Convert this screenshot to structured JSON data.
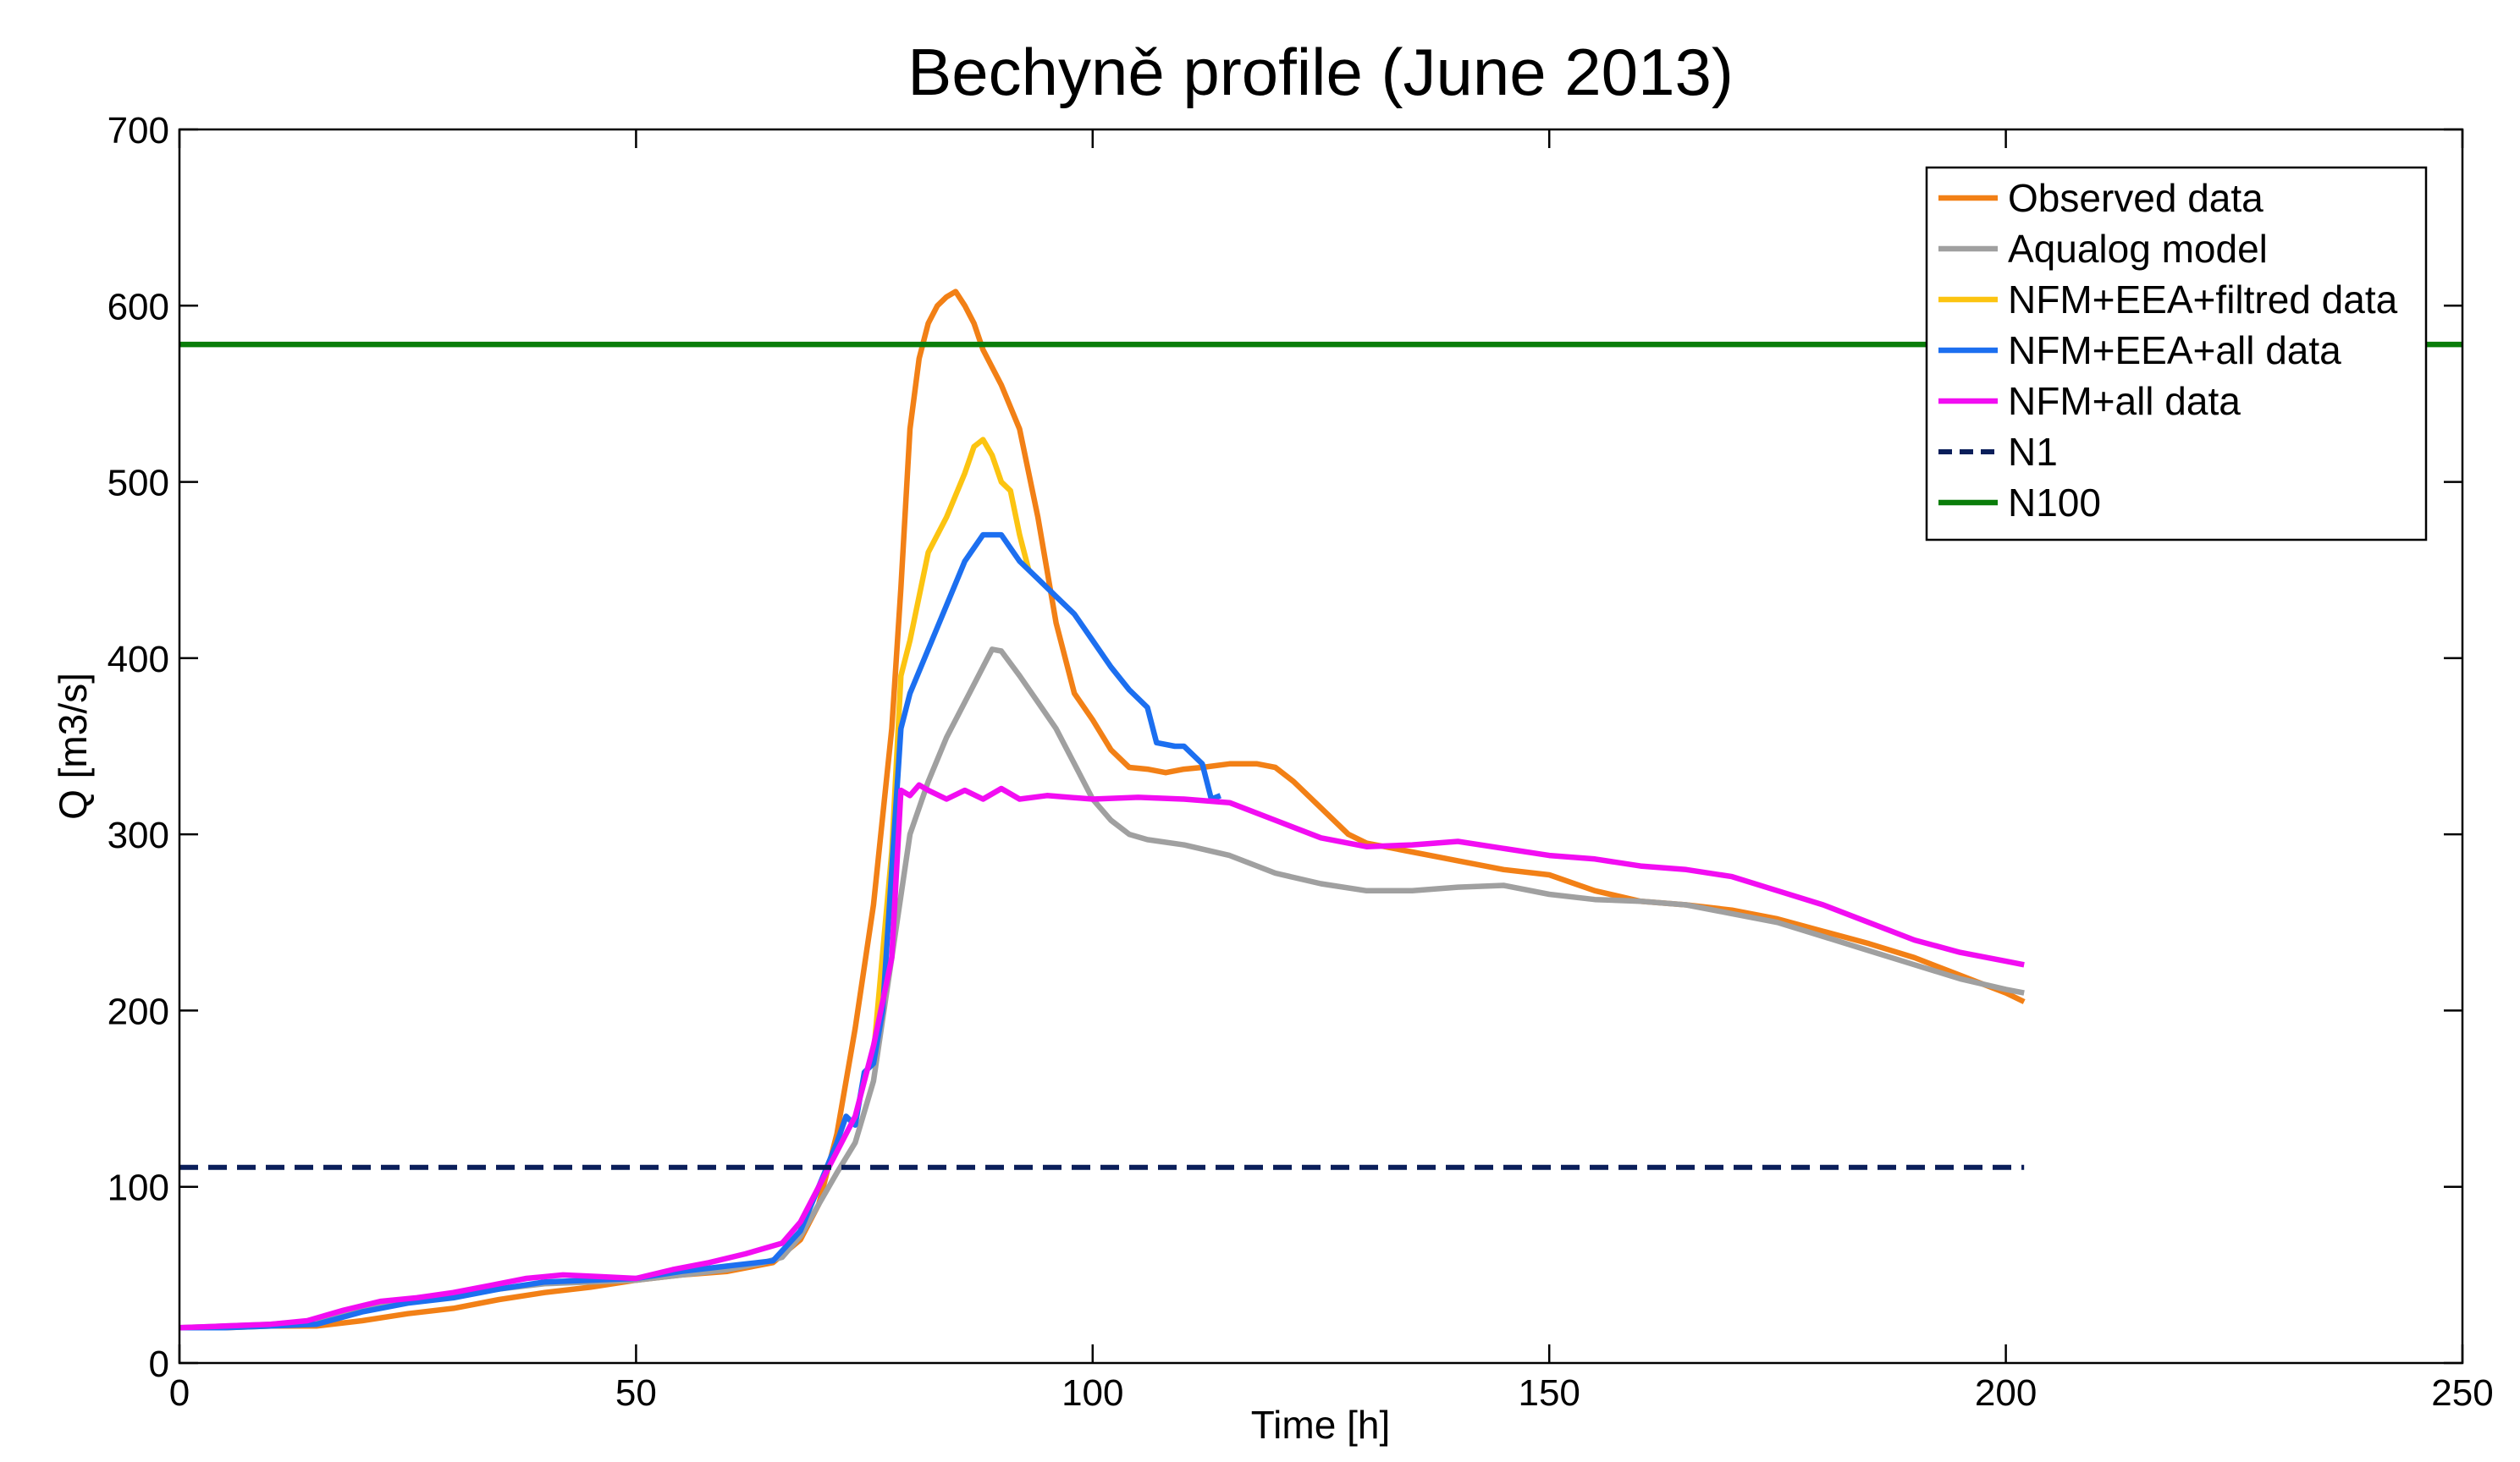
{
  "chart_data": {
    "type": "line",
    "title": "Bechyně profile (June 2013)",
    "xlabel": "Time [h]",
    "ylabel": "Q [m3/s]",
    "xlim": [
      0,
      250
    ],
    "ylim": [
      0,
      700
    ],
    "xticks": [
      0,
      50,
      100,
      150,
      200,
      250
    ],
    "yticks": [
      0,
      100,
      200,
      300,
      400,
      500,
      600,
      700
    ],
    "xtick_labels": [
      "0",
      "50",
      "100",
      "150",
      "200",
      "250"
    ],
    "ytick_labels": [
      "0",
      "100",
      "200",
      "300",
      "400",
      "500",
      "600",
      "700"
    ],
    "grid": false,
    "legend_position": "top-right",
    "series": [
      {
        "name": "Observed data",
        "color": "#f28016",
        "style": "solid",
        "points": [
          [
            0,
            20
          ],
          [
            5,
            20
          ],
          [
            10,
            21
          ],
          [
            15,
            21
          ],
          [
            20,
            24
          ],
          [
            25,
            28
          ],
          [
            30,
            31
          ],
          [
            35,
            36
          ],
          [
            40,
            40
          ],
          [
            45,
            43
          ],
          [
            50,
            47
          ],
          [
            55,
            50
          ],
          [
            60,
            52
          ],
          [
            65,
            57
          ],
          [
            68,
            70
          ],
          [
            70,
            90
          ],
          [
            72,
            130
          ],
          [
            74,
            190
          ],
          [
            76,
            260
          ],
          [
            78,
            360
          ],
          [
            79,
            440
          ],
          [
            80,
            530
          ],
          [
            81,
            570
          ],
          [
            82,
            590
          ],
          [
            83,
            600
          ],
          [
            84,
            605
          ],
          [
            85,
            608
          ],
          [
            86,
            600
          ],
          [
            87,
            590
          ],
          [
            88,
            575
          ],
          [
            90,
            555
          ],
          [
            92,
            530
          ],
          [
            94,
            480
          ],
          [
            96,
            420
          ],
          [
            98,
            380
          ],
          [
            100,
            365
          ],
          [
            102,
            348
          ],
          [
            104,
            338
          ],
          [
            106,
            337
          ],
          [
            108,
            335
          ],
          [
            110,
            337
          ],
          [
            112,
            338
          ],
          [
            115,
            340
          ],
          [
            118,
            340
          ],
          [
            120,
            338
          ],
          [
            122,
            330
          ],
          [
            125,
            315
          ],
          [
            128,
            300
          ],
          [
            130,
            295
          ],
          [
            135,
            290
          ],
          [
            140,
            285
          ],
          [
            145,
            280
          ],
          [
            150,
            277
          ],
          [
            155,
            268
          ],
          [
            160,
            262
          ],
          [
            165,
            260
          ],
          [
            170,
            257
          ],
          [
            175,
            252
          ],
          [
            180,
            245
          ],
          [
            185,
            238
          ],
          [
            190,
            230
          ],
          [
            195,
            220
          ],
          [
            200,
            210
          ],
          [
            202,
            205
          ]
        ]
      },
      {
        "name": "Aqualog model",
        "color": "#a0a0a0",
        "style": "solid",
        "points": [
          [
            0,
            20
          ],
          [
            5,
            21
          ],
          [
            10,
            22
          ],
          [
            15,
            24
          ],
          [
            20,
            32
          ],
          [
            25,
            36
          ],
          [
            30,
            38
          ],
          [
            35,
            42
          ],
          [
            40,
            45
          ],
          [
            45,
            46
          ],
          [
            50,
            47
          ],
          [
            55,
            50
          ],
          [
            60,
            53
          ],
          [
            64,
            57
          ],
          [
            66,
            60
          ],
          [
            68,
            72
          ],
          [
            70,
            90
          ],
          [
            72,
            108
          ],
          [
            74,
            125
          ],
          [
            76,
            160
          ],
          [
            78,
            230
          ],
          [
            80,
            300
          ],
          [
            82,
            330
          ],
          [
            84,
            355
          ],
          [
            86,
            375
          ],
          [
            88,
            395
          ],
          [
            89,
            405
          ],
          [
            90,
            404
          ],
          [
            92,
            390
          ],
          [
            94,
            375
          ],
          [
            96,
            360
          ],
          [
            98,
            340
          ],
          [
            100,
            320
          ],
          [
            102,
            308
          ],
          [
            104,
            300
          ],
          [
            106,
            297
          ],
          [
            110,
            294
          ],
          [
            115,
            288
          ],
          [
            120,
            278
          ],
          [
            125,
            272
          ],
          [
            130,
            268
          ],
          [
            135,
            268
          ],
          [
            140,
            270
          ],
          [
            145,
            271
          ],
          [
            150,
            266
          ],
          [
            155,
            263
          ],
          [
            160,
            262
          ],
          [
            165,
            260
          ],
          [
            170,
            255
          ],
          [
            175,
            250
          ],
          [
            180,
            242
          ],
          [
            185,
            234
          ],
          [
            190,
            226
          ],
          [
            195,
            218
          ],
          [
            200,
            212
          ],
          [
            202,
            210
          ]
        ]
      },
      {
        "name": "NFM+EEA+filtred data",
        "color": "#fcc411",
        "style": "solid",
        "points": [
          [
            76,
            175
          ],
          [
            78,
            290
          ],
          [
            79,
            390
          ],
          [
            80,
            410
          ],
          [
            82,
            460
          ],
          [
            84,
            480
          ],
          [
            86,
            505
          ],
          [
            87,
            520
          ],
          [
            88,
            524
          ],
          [
            89,
            515
          ],
          [
            90,
            500
          ],
          [
            91,
            495
          ],
          [
            92,
            470
          ],
          [
            93,
            450
          ]
        ]
      },
      {
        "name": "NFM+EEA+all data",
        "color": "#1c6ff0",
        "style": "solid",
        "points": [
          [
            0,
            20
          ],
          [
            5,
            20
          ],
          [
            10,
            21
          ],
          [
            15,
            22
          ],
          [
            20,
            29
          ],
          [
            25,
            34
          ],
          [
            30,
            37
          ],
          [
            35,
            42
          ],
          [
            40,
            46
          ],
          [
            45,
            47
          ],
          [
            50,
            48
          ],
          [
            55,
            52
          ],
          [
            60,
            55
          ],
          [
            65,
            58
          ],
          [
            68,
            75
          ],
          [
            70,
            100
          ],
          [
            72,
            125
          ],
          [
            73,
            140
          ],
          [
            74,
            135
          ],
          [
            75,
            165
          ],
          [
            76,
            170
          ],
          [
            77,
            200
          ],
          [
            78,
            280
          ],
          [
            79,
            360
          ],
          [
            80,
            380
          ],
          [
            82,
            405
          ],
          [
            84,
            430
          ],
          [
            86,
            455
          ],
          [
            88,
            470
          ],
          [
            90,
            470
          ],
          [
            92,
            455
          ],
          [
            94,
            445
          ],
          [
            96,
            435
          ],
          [
            98,
            425
          ],
          [
            100,
            410
          ],
          [
            102,
            395
          ],
          [
            104,
            382
          ],
          [
            106,
            372
          ],
          [
            107,
            352
          ],
          [
            109,
            350
          ],
          [
            110,
            350
          ],
          [
            112,
            340
          ],
          [
            113,
            320
          ],
          [
            114,
            322
          ]
        ]
      },
      {
        "name": "NFM+all data",
        "color": "#f20df2",
        "style": "solid",
        "points": [
          [
            0,
            20
          ],
          [
            5,
            21
          ],
          [
            10,
            22
          ],
          [
            14,
            24
          ],
          [
            18,
            30
          ],
          [
            22,
            35
          ],
          [
            26,
            37
          ],
          [
            30,
            40
          ],
          [
            34,
            44
          ],
          [
            38,
            48
          ],
          [
            42,
            50
          ],
          [
            46,
            49
          ],
          [
            50,
            48
          ],
          [
            54,
            53
          ],
          [
            58,
            57
          ],
          [
            62,
            62
          ],
          [
            66,
            68
          ],
          [
            68,
            80
          ],
          [
            70,
            100
          ],
          [
            72,
            120
          ],
          [
            74,
            140
          ],
          [
            76,
            180
          ],
          [
            78,
            230
          ],
          [
            79,
            325
          ],
          [
            80,
            322
          ],
          [
            81,
            328
          ],
          [
            82,
            325
          ],
          [
            84,
            320
          ],
          [
            86,
            325
          ],
          [
            88,
            320
          ],
          [
            90,
            326
          ],
          [
            92,
            320
          ],
          [
            95,
            322
          ],
          [
            100,
            320
          ],
          [
            105,
            321
          ],
          [
            110,
            320
          ],
          [
            115,
            318
          ],
          [
            120,
            308
          ],
          [
            125,
            298
          ],
          [
            130,
            293
          ],
          [
            135,
            294
          ],
          [
            140,
            296
          ],
          [
            145,
            292
          ],
          [
            150,
            288
          ],
          [
            155,
            286
          ],
          [
            160,
            282
          ],
          [
            165,
            280
          ],
          [
            170,
            276
          ],
          [
            175,
            268
          ],
          [
            180,
            260
          ],
          [
            185,
            250
          ],
          [
            190,
            240
          ],
          [
            195,
            233
          ],
          [
            200,
            228
          ],
          [
            202,
            226
          ]
        ]
      },
      {
        "name": "N1",
        "color": "#0a1e5a",
        "style": "dashed",
        "points": [
          [
            0,
            111
          ],
          [
            202,
            111
          ]
        ]
      },
      {
        "name": "N100",
        "color": "#0a7d0a",
        "style": "solid",
        "points": [
          [
            0,
            578
          ],
          [
            250,
            578
          ]
        ]
      }
    ]
  }
}
